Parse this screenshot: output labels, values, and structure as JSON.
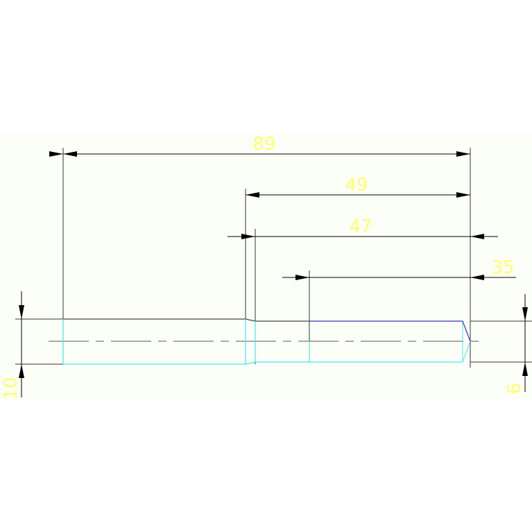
{
  "colors": {
    "background": "#fcfef8",
    "dimension_line": "#000000",
    "dimension_text": "#ffff66",
    "outline": "#222222",
    "hidden_edge_cyan": "#44e8ee",
    "edge_blue": "#3333cc",
    "centerline": "#777777"
  },
  "dimensions": {
    "overall_length": "89",
    "length_49": "49",
    "length_47": "47",
    "length_35": "35",
    "diameter_left": "10",
    "diameter_right": "6"
  }
}
